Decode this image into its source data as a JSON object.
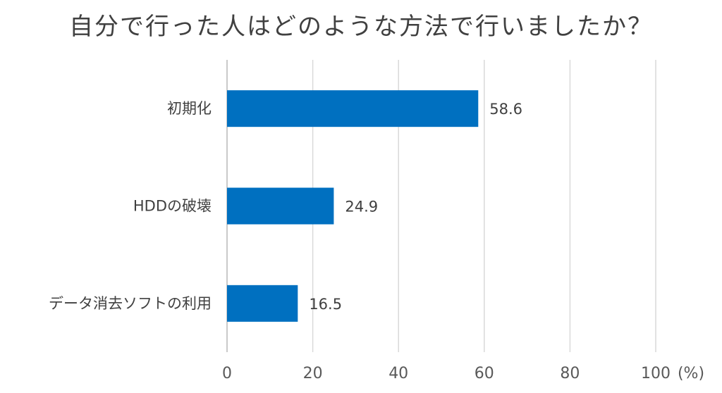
{
  "chart_data": {
    "type": "bar",
    "orientation": "horizontal",
    "title": "自分で行った人はどのような方法で行いましたか？",
    "categories": [
      "初期化",
      "HDDの破壊",
      "データ消去ソフトの利用"
    ],
    "values": [
      58.6,
      24.9,
      16.5
    ],
    "value_labels": [
      "58.6",
      "24.9",
      "16.5"
    ],
    "xlim": [
      0,
      100
    ],
    "x_ticks": [
      "0",
      "20",
      "40",
      "60",
      "80",
      "100"
    ],
    "x_unit": "(%)",
    "grid": "vertical",
    "legend": "none",
    "bar_color": "#0070C0",
    "grid_color": "#D9D9D9"
  }
}
